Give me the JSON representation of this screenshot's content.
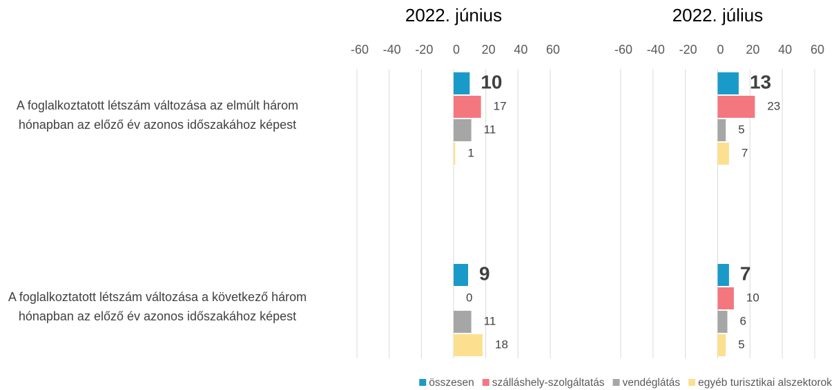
{
  "chart_data": {
    "type": "bar",
    "orientation": "horizontal",
    "categories": [
      "A foglalkoztatott létszám változása az elmúlt három hónapban az előző év azonos időszakához képest",
      "A foglalkoztatott létszám változása a következő három hónapban az előző év azonos időszakához képest"
    ],
    "series": [
      {
        "name": "összesen",
        "color": "#1a9ac9"
      },
      {
        "name": "szálláshely-szolgáltatás",
        "color": "#f4777f"
      },
      {
        "name": "vendéglátás",
        "color": "#a6a6a6"
      },
      {
        "name": "egyéb turisztikai alszektorok",
        "color": "#fde08f"
      }
    ],
    "xlim": [
      -60,
      60
    ],
    "xticks": [
      -60,
      -40,
      -20,
      0,
      20,
      40,
      60
    ],
    "grid": true,
    "legend": "bottom",
    "panels": [
      {
        "title": "2022. június",
        "values": [
          [
            10,
            9
          ],
          [
            17,
            0
          ],
          [
            11,
            11
          ],
          [
            1,
            18
          ]
        ]
      },
      {
        "title": "2022. július",
        "values": [
          [
            13,
            7
          ],
          [
            23,
            10
          ],
          [
            5,
            6
          ],
          [
            7,
            5
          ]
        ]
      }
    ]
  }
}
